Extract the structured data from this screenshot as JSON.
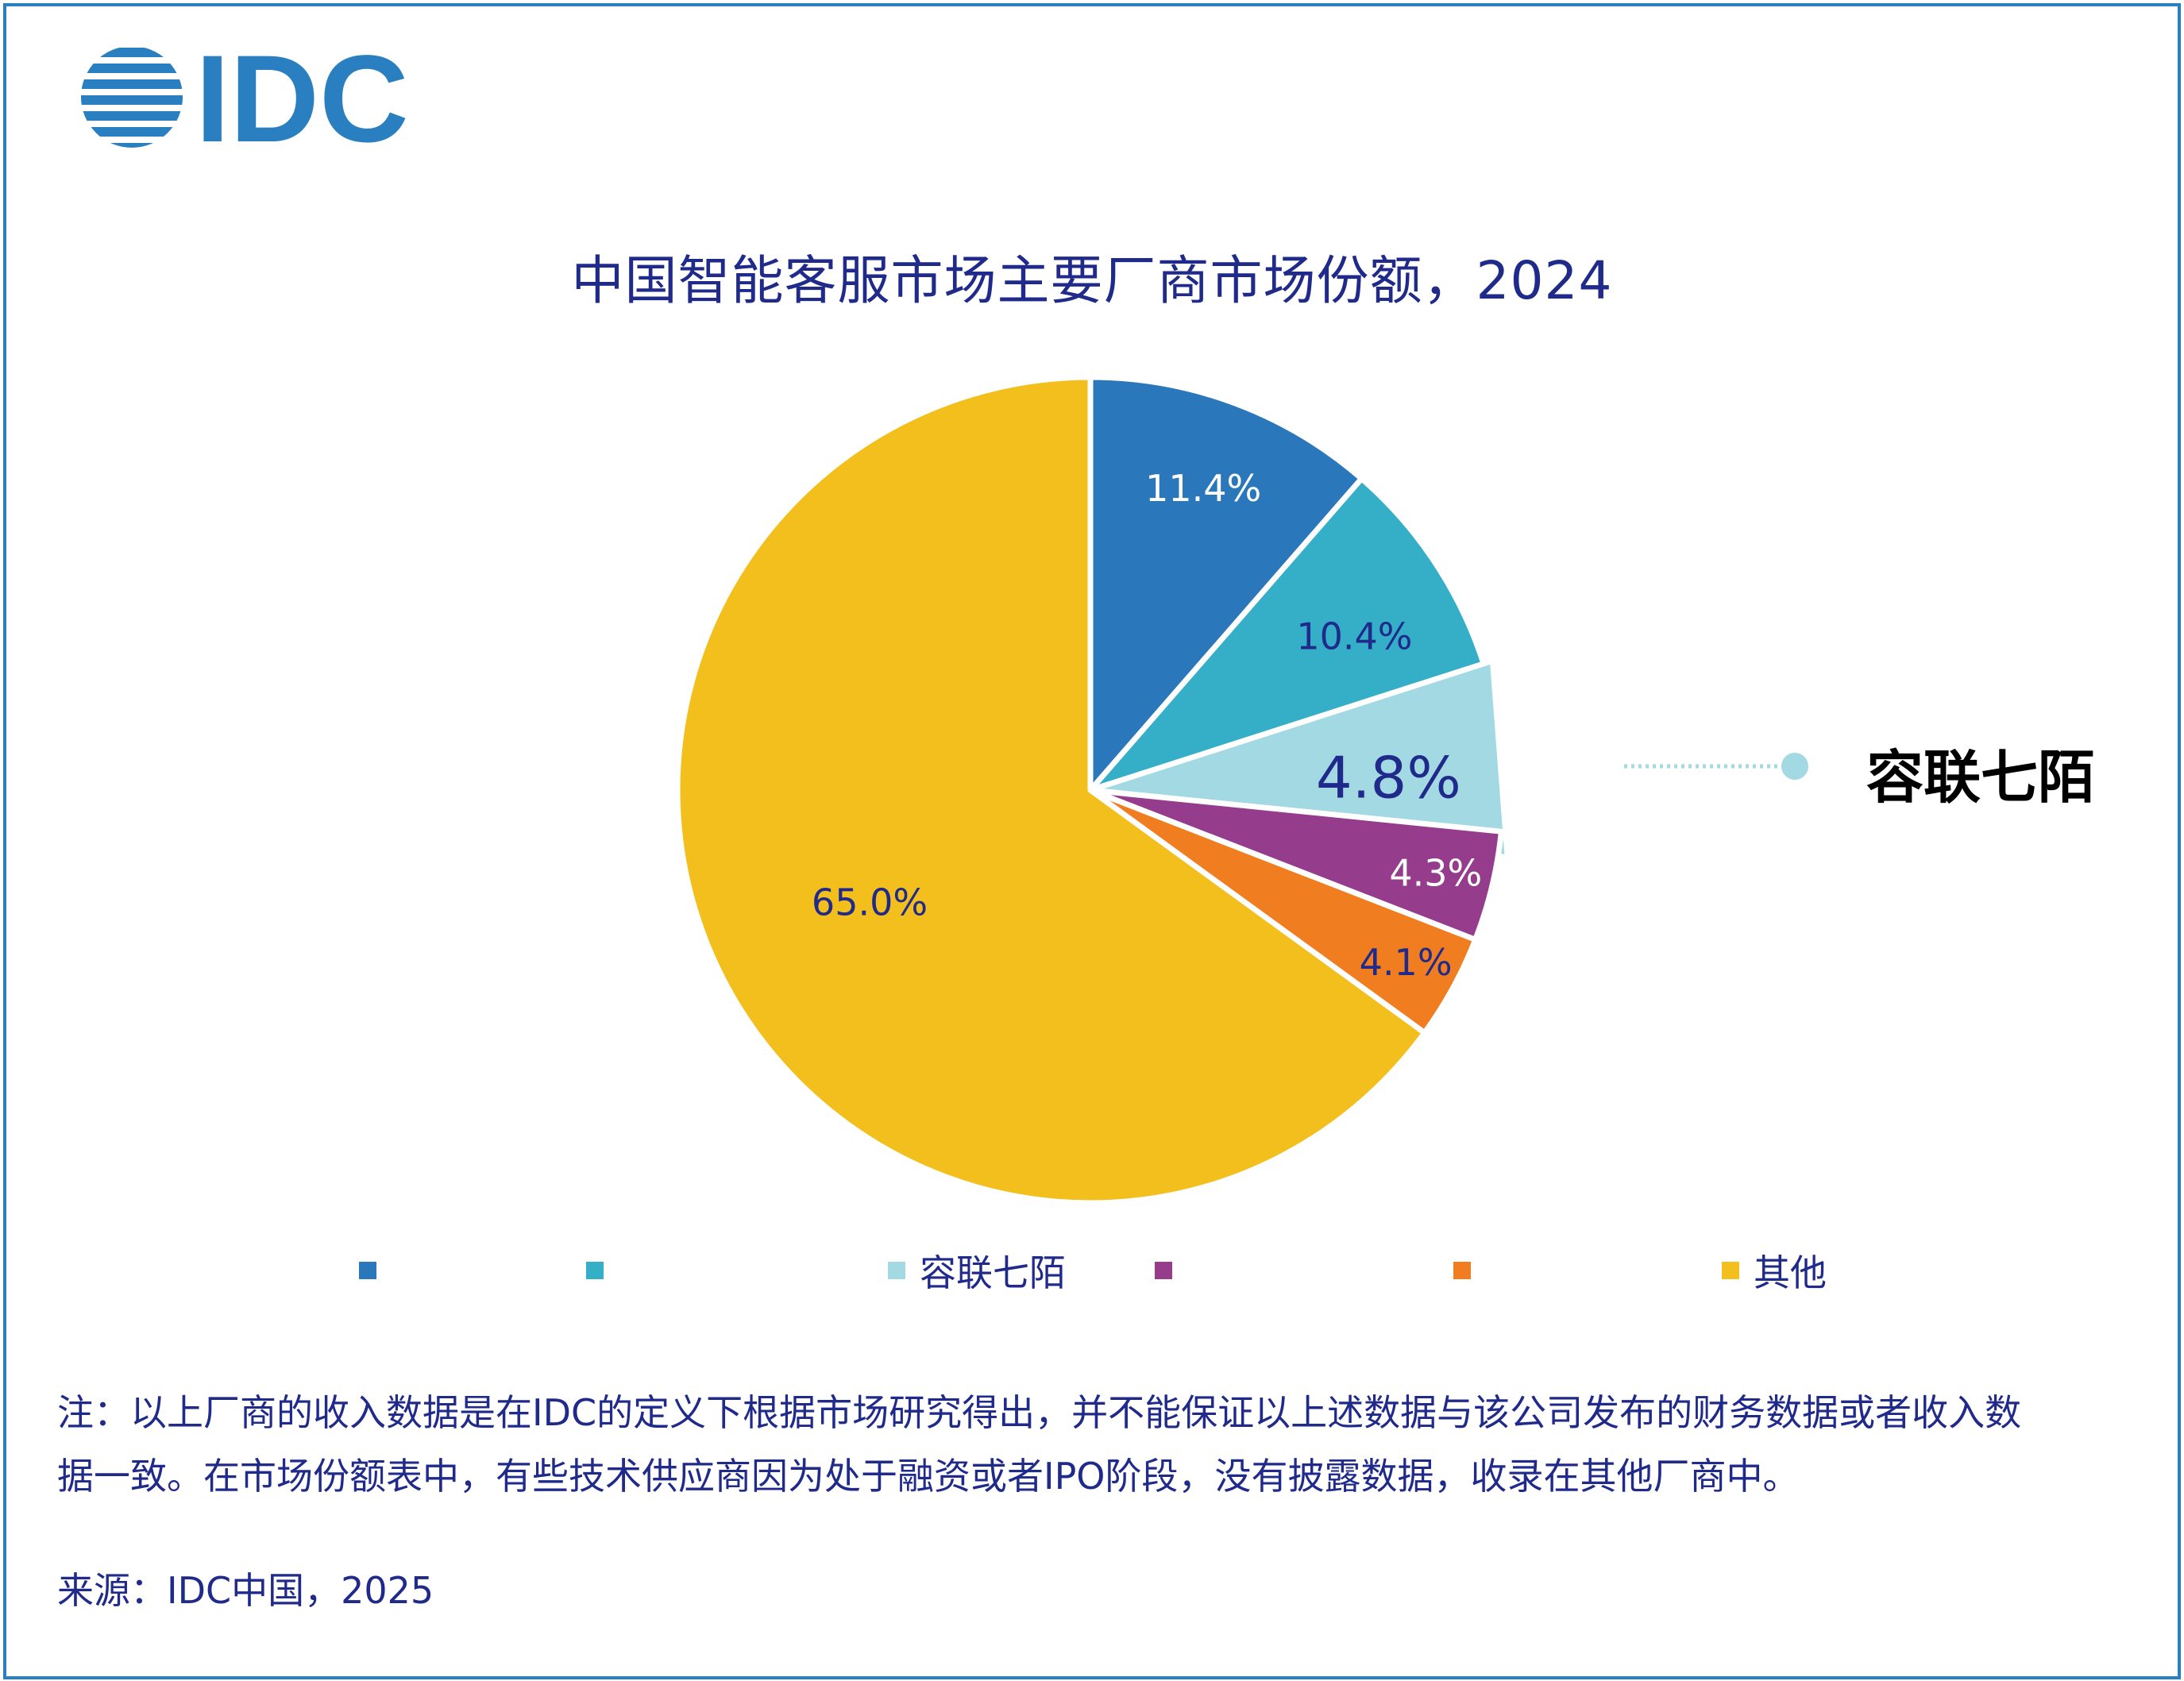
{
  "brand": {
    "logo_text": "IDC",
    "color": "#2a7fc0"
  },
  "chart_data": {
    "type": "pie",
    "title": "中国智能客服市场主要厂商市场份额，2024",
    "slices": [
      {
        "label": "",
        "value": 11.4,
        "display": "11.4%",
        "color": "#2a77bb",
        "label_color": "#ffffff"
      },
      {
        "label": "",
        "value": 10.4,
        "display": "10.4%",
        "color": "#35aec8",
        "label_color": "#1f2a8a"
      },
      {
        "label": "容联七陌",
        "value": 4.8,
        "display": "4.8%",
        "color": "#a3d9e2",
        "label_color": "#1f2a8a",
        "highlighted": true
      },
      {
        "label": "",
        "value": 4.3,
        "display": "4.3%",
        "color": "#953c8c",
        "label_color": "#ffffff"
      },
      {
        "label": "",
        "value": 4.1,
        "display": "4.1%",
        "color": "#f07d20",
        "label_color": "#1f2a8a"
      },
      {
        "label": "其他",
        "value": 65.0,
        "display": "65.0%",
        "color": "#f2bf1d",
        "label_color": "#1f2a8a"
      }
    ],
    "start_angle": "12 o'clock",
    "direction": "clockwise",
    "legend_position": "bottom",
    "callout": {
      "text": "容联七陌",
      "slice_index": 2
    }
  },
  "notes": {
    "note_line1": "注：以上厂商的收入数据是在IDC的定义下根据市场研究得出，并不能保证以上述数据与该公司发布的财务数据或者收入数",
    "note_line2": "据一致。在市场份额表中，有些技术供应商因为处于融资或者IPO阶段，没有披露数据，收录在其他厂商中。",
    "source": "来源：IDC中国，2025"
  }
}
